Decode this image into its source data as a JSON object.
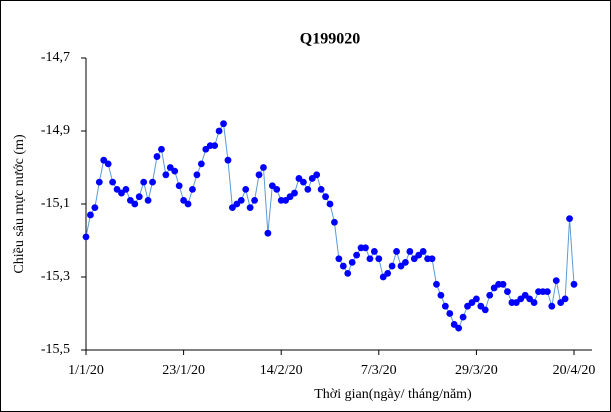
{
  "chart_data": {
    "type": "line",
    "title": "Q199020",
    "xlabel": "Thời gian(ngày/ tháng/năm)",
    "ylabel": "Chiều sâu mực  nước (m)",
    "x": [
      "1/1/20",
      "2/1/20",
      "3/1/20",
      "4/1/20",
      "5/1/20",
      "6/1/20",
      "7/1/20",
      "8/1/20",
      "9/1/20",
      "10/1/20",
      "11/1/20",
      "12/1/20",
      "13/1/20",
      "14/1/20",
      "15/1/20",
      "16/1/20",
      "17/1/20",
      "18/1/20",
      "19/1/20",
      "20/1/20",
      "21/1/20",
      "22/1/20",
      "23/1/20",
      "24/1/20",
      "25/1/20",
      "26/1/20",
      "27/1/20",
      "28/1/20",
      "29/1/20",
      "30/1/20",
      "31/1/20",
      "1/2/20",
      "2/2/20",
      "3/2/20",
      "4/2/20",
      "5/2/20",
      "6/2/20",
      "7/2/20",
      "8/2/20",
      "9/2/20",
      "10/2/20",
      "11/2/20",
      "12/2/20",
      "13/2/20",
      "14/2/20",
      "15/2/20",
      "16/2/20",
      "17/2/20",
      "18/2/20",
      "19/2/20",
      "20/2/20",
      "21/2/20",
      "22/2/20",
      "23/2/20",
      "24/2/20",
      "25/2/20",
      "26/2/20",
      "27/2/20",
      "28/2/20",
      "29/2/20",
      "1/3/20",
      "2/3/20",
      "3/3/20",
      "4/3/20",
      "5/3/20",
      "6/3/20",
      "7/3/20",
      "8/3/20",
      "9/3/20",
      "10/3/20",
      "11/3/20",
      "12/3/20",
      "13/3/20",
      "14/3/20",
      "15/3/20",
      "16/3/20",
      "17/3/20",
      "18/3/20",
      "19/3/20",
      "20/3/20",
      "21/3/20",
      "22/3/20",
      "23/3/20",
      "24/3/20",
      "25/3/20",
      "26/3/20",
      "27/3/20",
      "28/3/20",
      "29/3/20",
      "30/3/20",
      "31/3/20",
      "1/4/20",
      "2/4/20",
      "3/4/20",
      "4/4/20",
      "5/4/20",
      "6/4/20",
      "7/4/20",
      "8/4/20",
      "9/4/20",
      "10/4/20",
      "11/4/20",
      "12/4/20",
      "13/4/20",
      "14/4/20",
      "15/4/20",
      "16/4/20",
      "17/4/20",
      "18/4/20",
      "19/4/20",
      "20/4/20"
    ],
    "series": [
      {
        "name": "Q199020",
        "color": "#0000ff",
        "line_color": "#5b9bd5",
        "values": [
          -15.19,
          -15.13,
          -15.11,
          -15.04,
          -14.98,
          -14.99,
          -15.04,
          -15.06,
          -15.07,
          -15.06,
          -15.09,
          -15.1,
          -15.08,
          -15.04,
          -15.09,
          -15.04,
          -14.97,
          -14.95,
          -15.02,
          -15.0,
          -15.01,
          -15.05,
          -15.09,
          -15.1,
          -15.06,
          -15.02,
          -14.99,
          -14.95,
          -14.94,
          -14.94,
          -14.9,
          -14.88,
          -14.98,
          -15.11,
          -15.1,
          -15.09,
          -15.06,
          -15.11,
          -15.09,
          -15.02,
          -15.0,
          -15.18,
          -15.05,
          -15.06,
          -15.09,
          -15.09,
          -15.08,
          -15.07,
          -15.03,
          -15.04,
          -15.06,
          -15.03,
          -15.02,
          -15.06,
          -15.08,
          -15.1,
          -15.15,
          -15.25,
          -15.27,
          -15.29,
          -15.26,
          -15.24,
          -15.22,
          -15.22,
          -15.25,
          -15.23,
          -15.25,
          -15.3,
          -15.29,
          -15.27,
          -15.23,
          -15.27,
          -15.26,
          -15.23,
          -15.25,
          -15.24,
          -15.23,
          -15.25,
          -15.25,
          -15.32,
          -15.35,
          -15.38,
          -15.4,
          -15.43,
          -15.44,
          -15.41,
          -15.38,
          -15.37,
          -15.36,
          -15.38,
          -15.39,
          -15.35,
          -15.33,
          -15.32,
          -15.32,
          -15.34,
          -15.37,
          -15.37,
          -15.36,
          -15.35,
          -15.36,
          -15.37,
          -15.34,
          -15.34,
          -15.34,
          -15.38,
          -15.31,
          -15.37,
          -15.36,
          -15.14,
          -15.32
        ]
      }
    ],
    "xticks": [
      "1/1/20",
      "23/1/20",
      "14/2/20",
      "7/3/20",
      "29/3/20",
      "20/4/20"
    ],
    "ylim": [
      -15.5,
      -14.7
    ],
    "yticks": [
      {
        "value": -14.7,
        "label": "-14,7"
      },
      {
        "value": -14.9,
        "label": "-14,9"
      },
      {
        "value": -15.1,
        "label": "-15,1"
      },
      {
        "value": -15.3,
        "label": "-15,3"
      },
      {
        "value": -15.5,
        "label": "-15,5"
      }
    ],
    "grid": false,
    "legend": false
  }
}
